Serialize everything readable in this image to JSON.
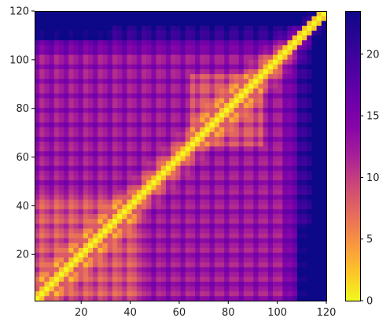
{
  "chart_data": {
    "type": "heatmap",
    "title": "",
    "xlabel": "",
    "ylabel": "",
    "xlim": [
      1,
      120
    ],
    "ylim": [
      1,
      120
    ],
    "x_ticks": [
      20,
      40,
      60,
      80,
      100,
      120
    ],
    "y_ticks": [
      20,
      40,
      60,
      80,
      100,
      120
    ],
    "y_axis_origin": "bottom",
    "matrix": "symmetric 120x120 pairwise distance map, 0 on the diagonal, max about 23",
    "colormap": "plasma_r",
    "colorbar": {
      "range": [
        0,
        23.5
      ],
      "ticks": [
        0,
        5,
        10,
        15,
        20
      ],
      "placement": "right"
    },
    "colors": {
      "low": "#f0f921",
      "mid": "#e56b5d",
      "high": "#0d0887"
    }
  },
  "axes_labels": {
    "x": [
      "20",
      "40",
      "60",
      "80",
      "100",
      "120"
    ],
    "y": [
      "20",
      "40",
      "60",
      "80",
      "100",
      "120"
    ],
    "colorbar": [
      "0",
      "5",
      "10",
      "15",
      "20"
    ]
  }
}
